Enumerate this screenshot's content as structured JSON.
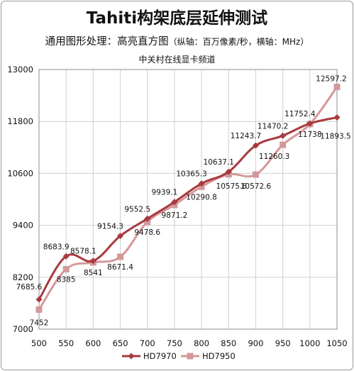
{
  "chart_data": {
    "type": "line",
    "title": "Tahiti构架底层延伸测试",
    "subtitle_main": "通用图形处理：高亮直方图",
    "subtitle_note": "（纵轴：百万像素/秒，横轴：MHz）",
    "source": "中关村在线显卡频道",
    "x": [
      500,
      550,
      600,
      650,
      700,
      750,
      800,
      850,
      900,
      950,
      1000,
      1050
    ],
    "ylim": [
      7000,
      13000
    ],
    "yticks": [
      7000,
      8200,
      9400,
      10600,
      11800,
      13000
    ],
    "legend_position": "bottom",
    "series": [
      {
        "name": "HD7970",
        "color": "#a83a3f",
        "values": [
          7685.6,
          8683.9,
          8578.1,
          9154.3,
          9552.5,
          9939.1,
          10365.3,
          10637.1,
          11243.7,
          11470.2,
          11752.4,
          11893.5
        ]
      },
      {
        "name": "HD7950",
        "color": "#d4989a",
        "values": [
          7452,
          8385,
          8541,
          8671.4,
          9478.6,
          9871.2,
          10290.8,
          10575.6,
          10572.6,
          11260.3,
          11738,
          12597.2
        ]
      }
    ]
  }
}
